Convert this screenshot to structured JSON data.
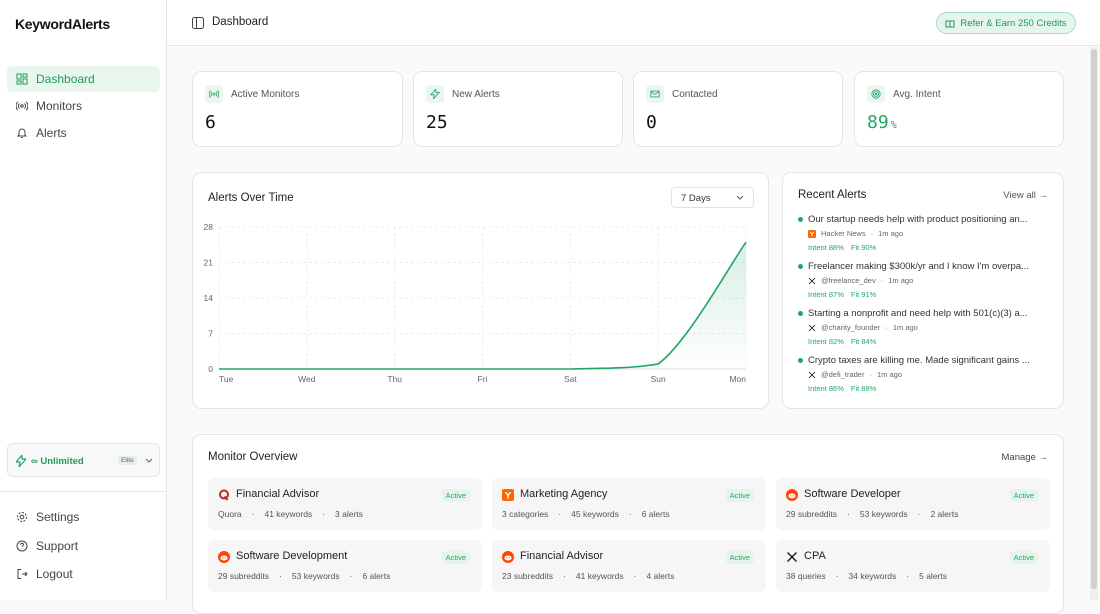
{
  "brand": "KeywordAlerts",
  "nav": [
    "Dashboard",
    "Monitors",
    "Alerts"
  ],
  "plan": {
    "label": "∞ Unlimited",
    "badge": "Elite"
  },
  "footer_nav": [
    "Settings",
    "Support",
    "Logout"
  ],
  "header": {
    "title": "Dashboard",
    "refer": "Refer & Earn 250 Credits"
  },
  "stats": [
    {
      "label": "Active Monitors",
      "value": 6
    },
    {
      "label": "New Alerts",
      "value": 25
    },
    {
      "label": "Contacted",
      "value": 0
    },
    {
      "label": "Avg. Intent",
      "value": 89,
      "unit": "%"
    }
  ],
  "chart_data": {
    "type": "line",
    "title": "Alerts Over Time",
    "range": "7 Days",
    "categories": [
      "Tue",
      "Wed",
      "Thu",
      "Fri",
      "Sat",
      "Sun",
      "Mon"
    ],
    "series": [
      {
        "name": "Alerts",
        "color": "#22a565",
        "values": [
          0,
          0,
          0,
          0,
          0,
          1,
          25
        ]
      }
    ],
    "ylim": [
      0,
      28
    ],
    "yticks": [
      0,
      7,
      14,
      21,
      28
    ],
    "grid": true
  },
  "recent": {
    "title": "Recent Alerts",
    "link": "View all →",
    "items": [
      {
        "text": "Our startup needs help with product positioning an...",
        "source": "Hacker News",
        "time": "1m ago",
        "intent": "Intent 88%",
        "fit": "Fit 90%",
        "icon": "hn"
      },
      {
        "text": "Freelancer making $300k/yr and I know I'm overpa...",
        "source": "@freelance_dev",
        "time": "1m ago",
        "intent": "Intent 87%",
        "fit": "Fit 91%",
        "icon": "x"
      },
      {
        "text": "Starting a nonprofit and need help with 501(c)(3) a...",
        "source": "@charity_founder",
        "time": "1m ago",
        "intent": "Intent 82%",
        "fit": "Fit 84%",
        "icon": "x"
      },
      {
        "text": "Crypto taxes are killing me. Made significant gains ...",
        "source": "@defi_trader",
        "time": "1m ago",
        "intent": "Intent 86%",
        "fit": "Fit 88%",
        "icon": "x"
      }
    ]
  },
  "monitors": {
    "title": "Monitor Overview",
    "link": "Manage →",
    "items": [
      {
        "name": "Financial Advisor",
        "status": "Active",
        "meta": [
          "Quora",
          "41 keywords",
          "3 alerts"
        ],
        "icon": "quora"
      },
      {
        "name": "Marketing Agency",
        "status": "Active",
        "meta": [
          "3 categories",
          "45 keywords",
          "6 alerts"
        ],
        "icon": "hn"
      },
      {
        "name": "Software Developer",
        "status": "Active",
        "meta": [
          "29 subreddits",
          "53 keywords",
          "2 alerts"
        ],
        "icon": "reddit"
      },
      {
        "name": "Software Development",
        "status": "Active",
        "meta": [
          "29 subreddits",
          "53 keywords",
          "6 alerts"
        ],
        "icon": "reddit"
      },
      {
        "name": "Financial Advisor",
        "status": "Active",
        "meta": [
          "23 subreddits",
          "41 keywords",
          "4 alerts"
        ],
        "icon": "reddit"
      },
      {
        "name": "CPA",
        "status": "Active",
        "meta": [
          "38 queries",
          "34 keywords",
          "5 alerts"
        ],
        "icon": "x"
      }
    ]
  }
}
